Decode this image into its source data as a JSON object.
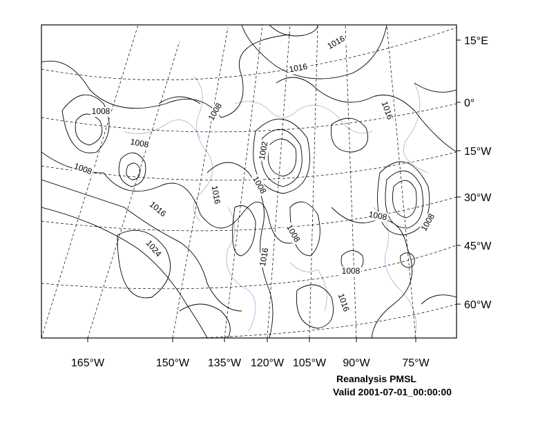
{
  "map": {
    "right_labels": [
      "15°E",
      "0°",
      "15°W",
      "30°W",
      "45°W",
      "60°W"
    ],
    "bottom_labels": [
      "165°W",
      "150°W",
      "135°W",
      "120°W",
      "105°W",
      "90°W",
      "75°W"
    ],
    "contour_labels": [
      1016,
      1016,
      1008,
      1008,
      1008,
      1008,
      1002,
      1008,
      1016,
      1016,
      1024,
      1008,
      1016,
      1008,
      1008,
      1008,
      1016,
      1016
    ],
    "title": "Reanalysis PMSL",
    "subtitle": "Valid 2001-07-01_00:00:00"
  }
}
